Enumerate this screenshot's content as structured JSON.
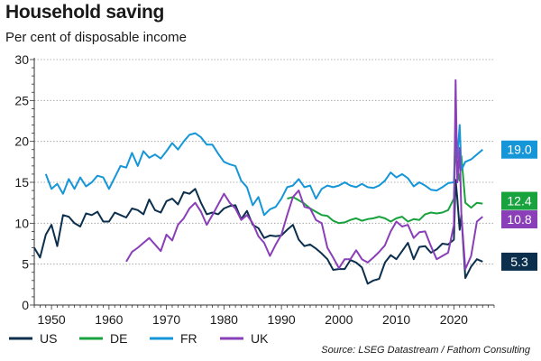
{
  "chart_data": {
    "type": "line",
    "title": "Household saving",
    "subtitle": "Per cent of disposable income",
    "source": "Source: LSEG Datastream / Fathom Consulting",
    "xlabel": "",
    "ylabel": "",
    "xlim": [
      1947,
      2027
    ],
    "ylim": [
      0,
      30
    ],
    "y_ticks": [
      0,
      5,
      10,
      15,
      20,
      25,
      30
    ],
    "x_ticks": [
      1950,
      1960,
      1970,
      1980,
      1990,
      2000,
      2010,
      2020
    ],
    "grid": "horizontal dotted",
    "legend_placement": "bottom-left",
    "series": [
      {
        "name": "US",
        "color": "#0b2f4d",
        "end_label": "5.3",
        "x": [
          1947,
          1948,
          1949,
          1950,
          1951,
          1952,
          1953,
          1954,
          1955,
          1956,
          1957,
          1958,
          1959,
          1960,
          1961,
          1962,
          1963,
          1964,
          1965,
          1966,
          1967,
          1968,
          1969,
          1970,
          1971,
          1972,
          1973,
          1974,
          1975,
          1976,
          1977,
          1978,
          1979,
          1980,
          1981,
          1982,
          1983,
          1984,
          1985,
          1986,
          1987,
          1988,
          1989,
          1990,
          1991,
          1992,
          1993,
          1994,
          1995,
          1996,
          1997,
          1998,
          1999,
          2000,
          2001,
          2002,
          2003,
          2004,
          2005,
          2006,
          2007,
          2008,
          2009,
          2010,
          2011,
          2012,
          2013,
          2014,
          2015,
          2016,
          2017,
          2018,
          2019,
          2020,
          2020.3,
          2020.6,
          2021,
          2021.3,
          2022,
          2023,
          2024,
          2025
        ],
        "values": [
          7.0,
          5.8,
          8.6,
          9.8,
          7.2,
          11.0,
          10.8,
          10.0,
          9.6,
          11.2,
          11.0,
          11.4,
          10.2,
          10.2,
          11.3,
          11.0,
          10.7,
          11.8,
          11.6,
          11.1,
          12.9,
          11.6,
          11.3,
          12.7,
          13.0,
          12.3,
          13.8,
          13.6,
          14.2,
          12.5,
          11.1,
          11.3,
          11.1,
          11.8,
          12.1,
          12.2,
          10.5,
          11.5,
          9.8,
          9.4,
          8.2,
          8.5,
          8.4,
          8.5,
          9.2,
          9.8,
          8.0,
          7.2,
          7.4,
          6.9,
          6.3,
          5.6,
          4.3,
          4.4,
          4.4,
          5.5,
          5.2,
          4.6,
          2.6,
          3.0,
          3.2,
          5.2,
          6.1,
          5.6,
          6.6,
          7.6,
          5.6,
          7.1,
          7.2,
          6.4,
          6.8,
          7.5,
          7.4,
          8.0,
          15.3,
          13.0,
          9.2,
          11.0,
          3.3,
          4.7,
          5.6,
          5.3
        ]
      },
      {
        "name": "DE",
        "color": "#18a33e",
        "end_label": "12.4",
        "x": [
          1991,
          1992,
          1993,
          1994,
          1995,
          1996,
          1997,
          1998,
          1999,
          2000,
          2001,
          2002,
          2003,
          2004,
          2005,
          2006,
          2007,
          2008,
          2009,
          2010,
          2011,
          2012,
          2013,
          2014,
          2015,
          2016,
          2017,
          2018,
          2019,
          2020,
          2020.3,
          2020.6,
          2021,
          2021.3,
          2022,
          2023,
          2024,
          2025
        ],
        "values": [
          13.0,
          13.2,
          12.8,
          12.4,
          11.8,
          11.4,
          11.0,
          10.9,
          10.3,
          10.0,
          10.1,
          10.4,
          10.6,
          10.3,
          10.5,
          10.6,
          10.8,
          10.6,
          10.2,
          10.6,
          10.8,
          10.2,
          10.5,
          10.4,
          11.1,
          11.3,
          11.2,
          11.3,
          11.6,
          13.0,
          19.8,
          16.5,
          15.2,
          18.2,
          12.5,
          11.9,
          12.5,
          12.4
        ]
      },
      {
        "name": "FR",
        "color": "#1596d8",
        "end_label": "19.0",
        "x": [
          1949,
          1950,
          1951,
          1952,
          1953,
          1954,
          1955,
          1956,
          1957,
          1958,
          1959,
          1960,
          1961,
          1962,
          1963,
          1964,
          1965,
          1966,
          1967,
          1968,
          1969,
          1970,
          1971,
          1972,
          1973,
          1974,
          1975,
          1976,
          1977,
          1978,
          1979,
          1980,
          1981,
          1982,
          1983,
          1984,
          1985,
          1986,
          1987,
          1988,
          1989,
          1990,
          1991,
          1992,
          1993,
          1994,
          1995,
          1996,
          1997,
          1998,
          1999,
          2000,
          2001,
          2002,
          2003,
          2004,
          2005,
          2006,
          2007,
          2008,
          2009,
          2010,
          2011,
          2012,
          2013,
          2014,
          2015,
          2016,
          2017,
          2018,
          2019,
          2020,
          2020.3,
          2020.6,
          2021,
          2021.3,
          2022,
          2023,
          2024,
          2025
        ],
        "values": [
          16.0,
          14.2,
          14.8,
          13.6,
          15.4,
          14.2,
          15.6,
          14.5,
          15.0,
          15.8,
          15.6,
          14.2,
          15.6,
          17.0,
          16.8,
          18.6,
          17.0,
          18.8,
          18.0,
          18.4,
          17.9,
          18.8,
          19.8,
          19.0,
          20.0,
          20.8,
          21.0,
          20.5,
          19.6,
          19.6,
          18.5,
          17.5,
          17.2,
          17.0,
          15.2,
          14.4,
          12.2,
          13.2,
          11.0,
          11.7,
          12.0,
          13.0,
          14.4,
          14.6,
          15.4,
          14.4,
          14.6,
          13.0,
          14.2,
          14.6,
          14.4,
          14.6,
          15.0,
          14.6,
          14.4,
          14.8,
          14.4,
          14.3,
          14.6,
          15.2,
          16.2,
          15.6,
          16.0,
          15.5,
          14.5,
          15.0,
          14.6,
          14.1,
          14.0,
          14.4,
          14.9,
          15.0,
          21.8,
          18.0,
          22.0,
          16.5,
          17.5,
          17.8,
          18.4,
          19.0
        ]
      },
      {
        "name": "UK",
        "color": "#8a3fb8",
        "end_label": "10.8",
        "x": [
          1963,
          1964,
          1965,
          1966,
          1967,
          1968,
          1969,
          1970,
          1971,
          1972,
          1973,
          1974,
          1975,
          1976,
          1977,
          1978,
          1979,
          1980,
          1981,
          1982,
          1983,
          1984,
          1985,
          1986,
          1987,
          1988,
          1989,
          1990,
          1991,
          1992,
          1993,
          1994,
          1995,
          1996,
          1997,
          1998,
          1999,
          2000,
          2001,
          2002,
          2003,
          2004,
          2005,
          2006,
          2007,
          2008,
          2009,
          2010,
          2011,
          2012,
          2013,
          2014,
          2015,
          2016,
          2017,
          2018,
          2019,
          2020,
          2020.3,
          2020.6,
          2021,
          2021.3,
          2022,
          2023,
          2024,
          2025
        ],
        "values": [
          5.3,
          6.5,
          7.0,
          7.6,
          8.2,
          7.4,
          6.6,
          8.6,
          7.9,
          9.8,
          10.6,
          11.8,
          12.5,
          11.4,
          9.8,
          11.0,
          12.3,
          13.6,
          12.5,
          11.8,
          10.4,
          11.0,
          10.0,
          8.4,
          7.6,
          6.0,
          7.4,
          8.6,
          11.0,
          13.2,
          14.0,
          12.0,
          11.8,
          10.4,
          10.0,
          7.0,
          5.8,
          4.5,
          5.6,
          5.6,
          6.7,
          5.6,
          5.2,
          5.8,
          6.5,
          7.3,
          9.0,
          10.2,
          9.6,
          9.8,
          8.2,
          8.9,
          9.0,
          7.2,
          5.6,
          6.0,
          6.4,
          9.8,
          27.5,
          15.0,
          19.2,
          11.0,
          4.4,
          6.0,
          10.2,
          10.8
        ]
      }
    ]
  }
}
